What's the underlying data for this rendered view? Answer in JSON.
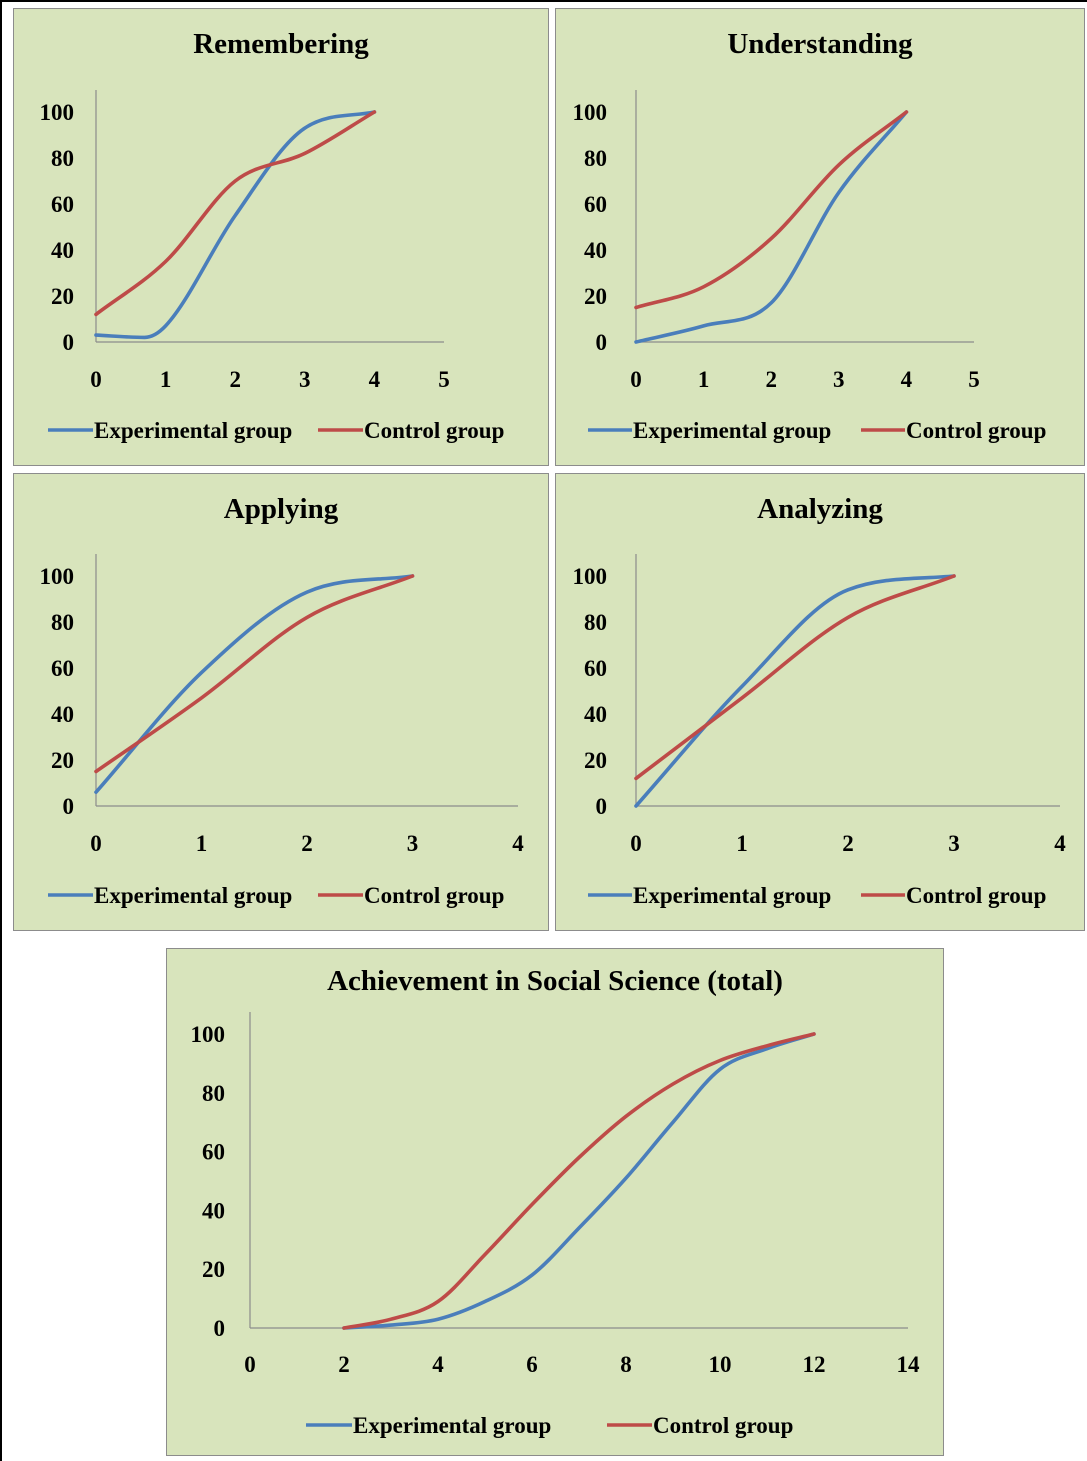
{
  "legend": {
    "experimental": "Experimental group",
    "control": "Control group"
  },
  "colors": {
    "experimental": "#4a7ebb",
    "control": "#be4b48",
    "panel_bg": "#d8e4bc"
  },
  "chart_data": [
    {
      "id": "remembering",
      "type": "line",
      "title": "Remembering",
      "xlabel": "",
      "ylabel": "",
      "xlim": [
        0,
        5
      ],
      "ylim": [
        0,
        100
      ],
      "x_ticks": [
        "0",
        "1",
        "2",
        "3",
        "4",
        "5"
      ],
      "y_ticks": [
        "0",
        "20",
        "40",
        "60",
        "80",
        "100"
      ],
      "grid": false,
      "legend_position": "bottom",
      "series": [
        {
          "name": "Experimental group",
          "x": [
            0,
            0.7,
            1,
            2,
            3,
            4
          ],
          "y": [
            3,
            2,
            7,
            55,
            93,
            100
          ]
        },
        {
          "name": "Control group",
          "x": [
            0,
            1,
            2,
            3,
            4
          ],
          "y": [
            12,
            35,
            70,
            82,
            100
          ]
        }
      ]
    },
    {
      "id": "understanding",
      "type": "line",
      "title": "Understanding",
      "xlabel": "",
      "ylabel": "",
      "xlim": [
        0,
        5
      ],
      "ylim": [
        0,
        100
      ],
      "x_ticks": [
        "0",
        "1",
        "2",
        "3",
        "4",
        "5"
      ],
      "y_ticks": [
        "0",
        "20",
        "40",
        "60",
        "80",
        "100"
      ],
      "grid": false,
      "legend_position": "bottom",
      "series": [
        {
          "name": "Experimental group",
          "x": [
            0,
            1,
            2,
            3,
            4
          ],
          "y": [
            0,
            7,
            17,
            65,
            100
          ]
        },
        {
          "name": "Control group",
          "x": [
            0,
            1,
            2,
            3,
            4
          ],
          "y": [
            15,
            24,
            45,
            77,
            100
          ]
        }
      ]
    },
    {
      "id": "applying",
      "type": "line",
      "title": "Applying",
      "xlabel": "",
      "ylabel": "",
      "xlim": [
        0,
        4
      ],
      "ylim": [
        0,
        100
      ],
      "x_ticks": [
        "0",
        "1",
        "2",
        "3",
        "4"
      ],
      "y_ticks": [
        "0",
        "20",
        "40",
        "60",
        "80",
        "100"
      ],
      "grid": false,
      "legend_position": "bottom",
      "series": [
        {
          "name": "Experimental group",
          "x": [
            0,
            1,
            2,
            3
          ],
          "y": [
            6,
            58,
            93,
            100
          ]
        },
        {
          "name": "Control group",
          "x": [
            0,
            1,
            2,
            3
          ],
          "y": [
            15,
            47,
            82,
            100
          ]
        }
      ]
    },
    {
      "id": "analyzing",
      "type": "line",
      "title": "Analyzing",
      "xlabel": "",
      "ylabel": "",
      "xlim": [
        0,
        4
      ],
      "ylim": [
        0,
        100
      ],
      "x_ticks": [
        "0",
        "1",
        "2",
        "3",
        "4"
      ],
      "y_ticks": [
        "0",
        "20",
        "40",
        "60",
        "80",
        "100"
      ],
      "grid": false,
      "legend_position": "bottom",
      "series": [
        {
          "name": "Experimental group",
          "x": [
            0,
            1,
            2,
            3
          ],
          "y": [
            0,
            52,
            94,
            100
          ]
        },
        {
          "name": "Control group",
          "x": [
            0,
            1,
            2,
            3
          ],
          "y": [
            12,
            47,
            82,
            100
          ]
        }
      ]
    },
    {
      "id": "total",
      "type": "line",
      "title": "Achievement in Social Science (total)",
      "xlabel": "",
      "ylabel": "",
      "xlim": [
        0,
        14
      ],
      "ylim": [
        0,
        100
      ],
      "x_ticks": [
        "0",
        "2",
        "4",
        "6",
        "8",
        "10",
        "12",
        "14"
      ],
      "y_ticks": [
        "0",
        "20",
        "40",
        "60",
        "80",
        "100"
      ],
      "grid": false,
      "legend_position": "bottom",
      "series": [
        {
          "name": "Experimental group",
          "x": [
            2,
            3,
            4,
            5,
            6,
            7,
            8,
            9,
            10,
            11,
            12
          ],
          "y": [
            0,
            1,
            3,
            9,
            18,
            34,
            51,
            70,
            88,
            95,
            100
          ]
        },
        {
          "name": "Control group",
          "x": [
            2,
            3,
            4,
            5,
            6,
            7,
            8,
            9,
            10,
            11,
            12
          ],
          "y": [
            0,
            3,
            9,
            25,
            42,
            58,
            72,
            83,
            91,
            96,
            100
          ]
        }
      ]
    }
  ]
}
